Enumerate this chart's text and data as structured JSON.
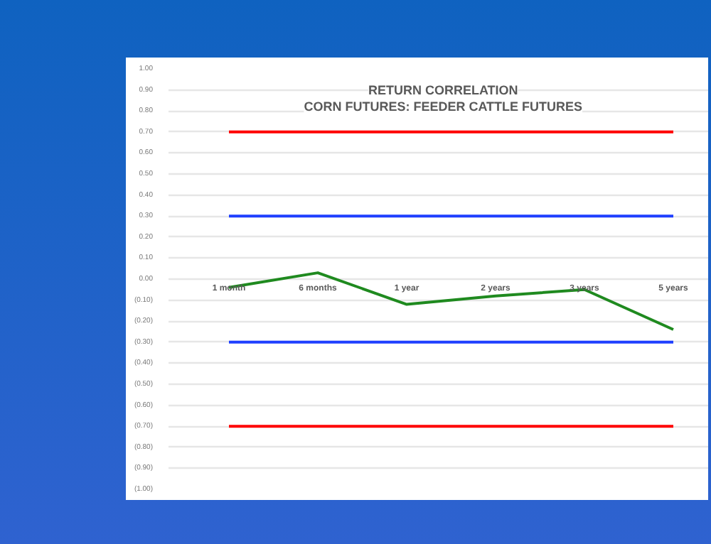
{
  "chart_data": {
    "type": "line",
    "title": "RETURN CORRELATION",
    "subtitle": "CORN FUTURES: FEEDER CATTLE FUTURES",
    "categories": [
      "1 month",
      "6 months",
      "1 year",
      "2 years",
      "3 years",
      "5 years"
    ],
    "series": [
      {
        "color": "#ff0000",
        "values": [
          0.7,
          0.7,
          0.7,
          0.7,
          0.7,
          0.7
        ]
      },
      {
        "color": "#1f3fff",
        "values": [
          0.3,
          0.3,
          0.3,
          0.3,
          0.3,
          0.3
        ]
      },
      {
        "color": "#1f8a1f",
        "values": [
          -0.04,
          0.03,
          -0.12,
          -0.08,
          -0.05,
          -0.24
        ]
      },
      {
        "color": "#1f3fff",
        "values": [
          -0.3,
          -0.3,
          -0.3,
          -0.3,
          -0.3,
          -0.3
        ]
      },
      {
        "color": "#ff0000",
        "values": [
          -0.7,
          -0.7,
          -0.7,
          -0.7,
          -0.7,
          -0.7
        ]
      }
    ],
    "ylim": [
      -1.0,
      1.0
    ],
    "yticks": [
      {
        "value": 1.0,
        "label": "1.00"
      },
      {
        "value": 0.9,
        "label": "0.90"
      },
      {
        "value": 0.8,
        "label": "0.80"
      },
      {
        "value": 0.7,
        "label": "0.70"
      },
      {
        "value": 0.6,
        "label": "0.60"
      },
      {
        "value": 0.5,
        "label": "0.50"
      },
      {
        "value": 0.4,
        "label": "0.40"
      },
      {
        "value": 0.3,
        "label": "0.30"
      },
      {
        "value": 0.2,
        "label": "0.20"
      },
      {
        "value": 0.1,
        "label": "0.10"
      },
      {
        "value": 0,
        "label": "0.00"
      },
      {
        "value": -0.1,
        "label": "(0.10)"
      },
      {
        "value": -0.2,
        "label": "(0.20)"
      },
      {
        "value": -0.3,
        "label": "(0.30)"
      },
      {
        "value": -0.4,
        "label": "(0.40)"
      },
      {
        "value": -0.5,
        "label": "(0.50)"
      },
      {
        "value": -0.6,
        "label": "(0.60)"
      },
      {
        "value": -0.7,
        "label": "(0.70)"
      },
      {
        "value": -0.8,
        "label": "(0.80)"
      },
      {
        "value": -0.9,
        "label": "(0.90)"
      },
      {
        "value": -1.0,
        "label": "(1.00)"
      }
    ],
    "grid": "y",
    "marker": "none",
    "line_style": "solid"
  }
}
